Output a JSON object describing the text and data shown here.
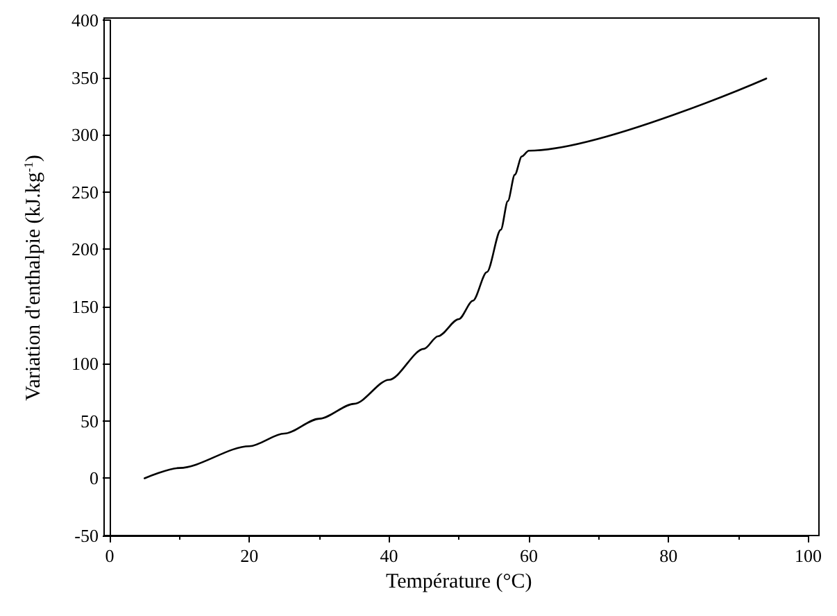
{
  "chart_data": {
    "type": "line",
    "xlabel": "Température (°C)",
    "ylabel": "Variation d'enthalpie (kJ.kg$^{-1}$)",
    "x": [
      5,
      10,
      20,
      25,
      30,
      35,
      40,
      45,
      47,
      50,
      52,
      54,
      56,
      57,
      58,
      59,
      60,
      94
    ],
    "series": [
      {
        "color": "#000000",
        "values": [
          0,
          9,
          28,
          39,
          52,
          65,
          86,
          113,
          124,
          139,
          155,
          180,
          217,
          242,
          265,
          281,
          286,
          349
        ]
      }
    ],
    "xlim": [
      0,
      100
    ],
    "xticks": [
      0,
      20,
      40,
      60,
      80,
      100
    ],
    "ylim": [
      -50,
      400
    ],
    "yticks": [
      -50,
      0,
      50,
      100,
      150,
      200,
      250,
      300,
      350,
      400
    ],
    "grid": false,
    "marker": "none",
    "line_style": "solid"
  }
}
